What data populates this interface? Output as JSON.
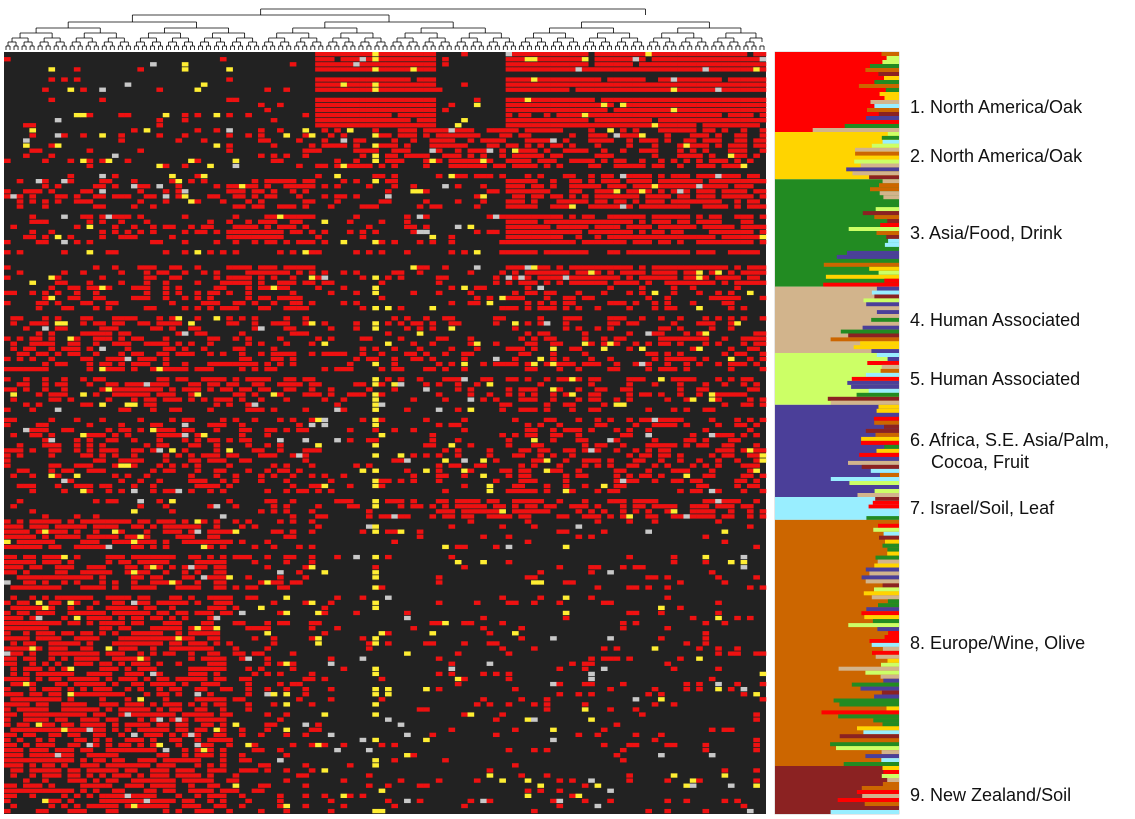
{
  "chart_data": {
    "type": "heatmap",
    "description": "",
    "color_scale": {
      "black": "#222222",
      "red": "#ee1111",
      "yellow": "#ffee33",
      "gray": "#c8c8c8"
    },
    "clusters": [
      {
        "id": 1,
        "label": "1. North America/Oak",
        "color": "#ff0000",
        "fraction": 0.105
      },
      {
        "id": 2,
        "label": "2. North America/Oak",
        "color": "#ffd400",
        "fraction": 0.062
      },
      {
        "id": 3,
        "label": "3. Asia/Food, Drink",
        "color": "#228b22",
        "fraction": 0.141
      },
      {
        "id": 4,
        "label": "4. Human Associated",
        "color": "#d2b48c",
        "fraction": 0.087
      },
      {
        "id": 5,
        "label": "5. Human Associated",
        "color": "#ccff66",
        "fraction": 0.068
      },
      {
        "id": 6,
        "label": "6. Africa, S.E. Asia/Palm,",
        "label_line2": "Cocoa, Fruit",
        "color": "#4b3f99",
        "fraction": 0.121
      },
      {
        "id": 7,
        "label": "7. Israel/Soil, Leaf",
        "color": "#99eeff",
        "fraction": 0.03
      },
      {
        "id": 8,
        "label": "8. Europe/Wine, Olive",
        "color": "#cc6600",
        "fraction": 0.323
      },
      {
        "id": 9,
        "label": "9. New Zealand/Soil",
        "color": "#8b2222",
        "fraction": 0.063
      }
    ],
    "heatmap_bands": [
      {
        "rows": [
          0.0,
          0.105
        ],
        "pattern": "red_blocks_top"
      },
      {
        "rows": [
          0.105,
          0.167
        ],
        "pattern": "red_mid"
      },
      {
        "rows": [
          0.167,
          0.308
        ],
        "pattern": "red_mixed"
      },
      {
        "rows": [
          0.308,
          0.395
        ],
        "pattern": "speckled"
      },
      {
        "rows": [
          0.395,
          0.463
        ],
        "pattern": "speckled_red"
      },
      {
        "rows": [
          0.463,
          0.584
        ],
        "pattern": "speckled"
      },
      {
        "rows": [
          0.584,
          0.614
        ],
        "pattern": "red_mid"
      },
      {
        "rows": [
          0.614,
          0.937
        ],
        "pattern": "red_left"
      },
      {
        "rows": [
          0.937,
          1.0
        ],
        "pattern": "red_left"
      }
    ]
  }
}
